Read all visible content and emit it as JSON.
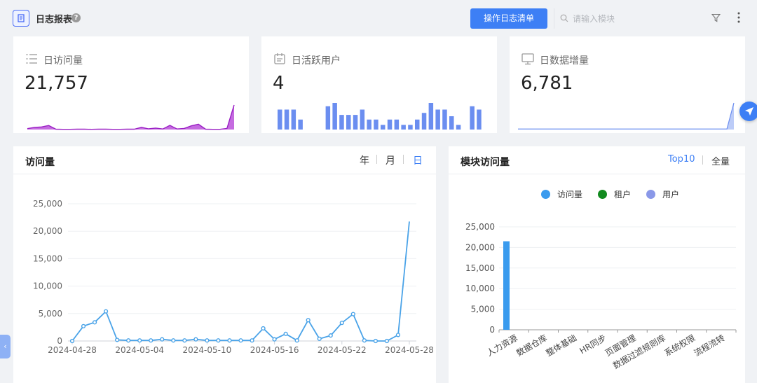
{
  "header": {
    "title": "日志报表",
    "help": "?",
    "action_button": "操作日志清单",
    "search_placeholder": "请输入模块"
  },
  "stats": [
    {
      "label": "日访问量",
      "value": "21,757",
      "icon": "list-icon",
      "color": "#a020c8"
    },
    {
      "label": "日活跃用户",
      "value": "4",
      "icon": "calendar-icon",
      "color": "#6b8ef0"
    },
    {
      "label": "日数据增量",
      "value": "6,781",
      "icon": "monitor-icon",
      "color": "#6b8ef0"
    }
  ],
  "sparklines": {
    "visits": [
      800,
      1900,
      2300,
      3600,
      300,
      200,
      200,
      300,
      300,
      200,
      300,
      300,
      200,
      200,
      300,
      300,
      2000,
      600,
      1300,
      500,
      3700,
      500,
      1000,
      3300,
      4700,
      300,
      200,
      200,
      1000,
      21757
    ],
    "active_users": [
      3,
      3,
      3,
      1.5,
      0,
      0,
      0,
      3.5,
      4,
      2.2,
      2.2,
      2.2,
      3,
      1.5,
      1.5,
      0.7,
      1.5,
      1.5,
      0.7,
      0.7,
      1.5,
      2.5,
      4,
      3,
      3,
      2,
      0.7,
      0,
      3.5,
      3
    ],
    "data_increase": [
      150,
      150,
      150,
      150,
      150,
      150,
      150,
      150,
      150,
      150,
      150,
      150,
      150,
      150,
      150,
      150,
      150,
      150,
      150,
      150,
      150,
      150,
      150,
      150,
      150,
      150,
      150,
      150,
      150,
      150,
      150,
      6781
    ]
  },
  "visits_panel": {
    "title": "访问量",
    "tabs": [
      "年",
      "月",
      "日"
    ],
    "active_tab": "日"
  },
  "modules_panel": {
    "title": "模块访问量",
    "tabs": [
      "Top10",
      "全量"
    ],
    "active_tab": "Top10"
  },
  "chart_data": [
    {
      "type": "line",
      "x": [
        "2024-04-28",
        "2024-04-29",
        "2024-04-30",
        "2024-05-01",
        "2024-05-02",
        "2024-05-03",
        "2024-05-04",
        "2024-05-05",
        "2024-05-06",
        "2024-05-07",
        "2024-05-08",
        "2024-05-09",
        "2024-05-10",
        "2024-05-11",
        "2024-05-12",
        "2024-05-13",
        "2024-05-14",
        "2024-05-15",
        "2024-05-16",
        "2024-05-17",
        "2024-05-18",
        "2024-05-19",
        "2024-05-20",
        "2024-05-21",
        "2024-05-22",
        "2024-05-23",
        "2024-05-24",
        "2024-05-25",
        "2024-05-26",
        "2024-05-27",
        "2024-05-28"
      ],
      "xticks": [
        "2024-04-28",
        "2024-05-04",
        "2024-05-10",
        "2024-05-16",
        "2024-05-22",
        "2024-05-28"
      ],
      "values": [
        0,
        2700,
        3400,
        5400,
        200,
        100,
        100,
        100,
        300,
        100,
        100,
        300,
        100,
        100,
        100,
        100,
        100,
        2300,
        300,
        1300,
        100,
        3800,
        400,
        1000,
        3300,
        4900,
        100,
        0,
        0,
        1100,
        21757
      ],
      "ylim": [
        0,
        25000
      ],
      "yticks": [
        "0",
        "5,000",
        "10,000",
        "15,000",
        "20,000",
        "25,000"
      ],
      "color": "#4aa3e8"
    },
    {
      "type": "bar",
      "categories": [
        "人力资源",
        "数据仓库",
        "整体基础",
        "HR同步",
        "页面管理",
        "数据过滤规则库",
        "系统权限",
        "流程流转"
      ],
      "series": [
        {
          "name": "访问量",
          "values": [
            21500,
            0,
            0,
            0,
            0,
            0,
            0,
            0
          ],
          "color": "#3a9bee"
        },
        {
          "name": "租户",
          "values": [
            0,
            0,
            0,
            0,
            0,
            0,
            0,
            0
          ],
          "color": "#128a1f"
        },
        {
          "name": "用户",
          "values": [
            0,
            0,
            0,
            0,
            0,
            0,
            0,
            0
          ],
          "color": "#8a98e8"
        }
      ],
      "ylim": [
        0,
        25000
      ],
      "yticks": [
        "0",
        "5,000",
        "10,000",
        "15,000",
        "20,000",
        "25,000"
      ]
    }
  ]
}
